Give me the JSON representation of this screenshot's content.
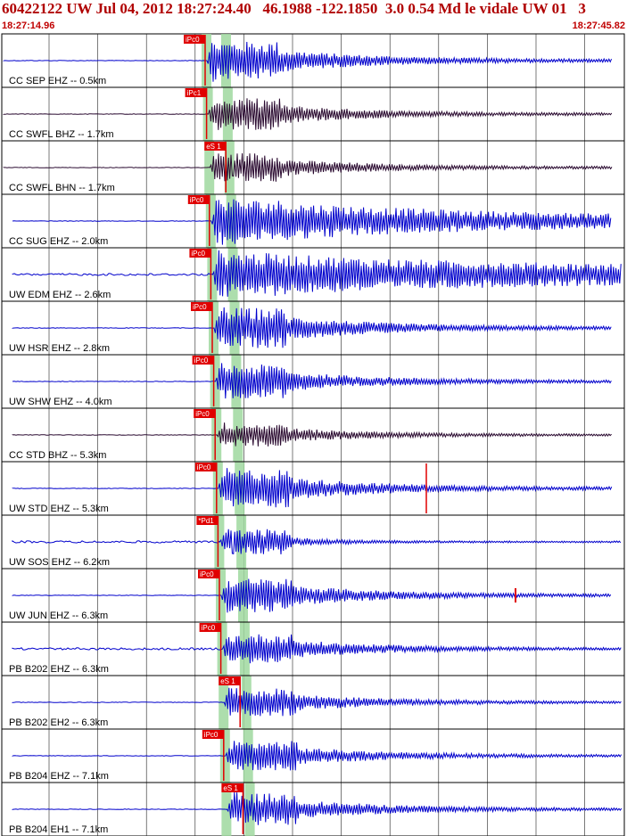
{
  "header": {
    "title": "60422122 UW Jul 04, 2012 18:27:24.40   46.1988 -122.1850  3.0 0.54 Md le vidale UW 01   3",
    "time_start": "18:27:14.96",
    "time_end": "18:27:45.82"
  },
  "colors": {
    "header_text": "#b00000",
    "trace_blue": "#0000cc",
    "trace_dark": "#2a0a30",
    "pick_red": "#e00000",
    "window_green": "#9fd89f"
  },
  "channels": [
    {
      "label": "CC SEP EHZ -- 0.5km",
      "pick": "iPc0",
      "color": "blue",
      "amp": 0.9
    },
    {
      "label": "CC SWFL BHZ -- 1.7km",
      "pick": "iPc1",
      "color": "dark",
      "amp": 0.75
    },
    {
      "label": "CC SWFL BHN -- 1.7km",
      "pick": "eS 1",
      "color": "dark",
      "amp": 0.7
    },
    {
      "label": "CC SUG EHZ -- 2.0km",
      "pick": "iPc0",
      "color": "blue",
      "amp": 1.0
    },
    {
      "label": "UW EDM EHZ -- 2.6km",
      "pick": "iPc0",
      "color": "blue",
      "amp": 1.0
    },
    {
      "label": "UW HSR EHZ -- 2.8km",
      "pick": "iPc0",
      "color": "blue",
      "amp": 0.95
    },
    {
      "label": "UW SHW EHZ -- 4.0km",
      "pick": "iPc0",
      "color": "blue",
      "amp": 0.8
    },
    {
      "label": "CC STD BHZ -- 5.3km",
      "pick": "iPc0",
      "color": "dark",
      "amp": 0.55
    },
    {
      "label": "UW STD EHZ -- 5.3km",
      "pick": "iPc0",
      "color": "blue",
      "amp": 0.9
    },
    {
      "label": "UW SOS EHZ -- 6.2km",
      "pick": "*Pd1",
      "color": "blue",
      "amp": 0.6
    },
    {
      "label": "UW JUN EHZ -- 6.3km",
      "pick": "iPc0",
      "color": "blue",
      "amp": 0.8
    },
    {
      "label": "PB B202 EHZ -- 6.3km",
      "pick": "iPc0",
      "color": "blue",
      "amp": 0.7
    },
    {
      "label": "PB B202 EH2 -- 6.3km",
      "pick": "eS 1",
      "color": "blue",
      "amp": 0.65
    },
    {
      "label": "PB B204 EHZ -- 7.1km",
      "pick": "iPc0",
      "color": "blue",
      "amp": 0.7
    },
    {
      "label": "PB B204 EH1 -- 7.1km",
      "pick": "eS 1",
      "color": "blue",
      "amp": 0.75
    }
  ]
}
